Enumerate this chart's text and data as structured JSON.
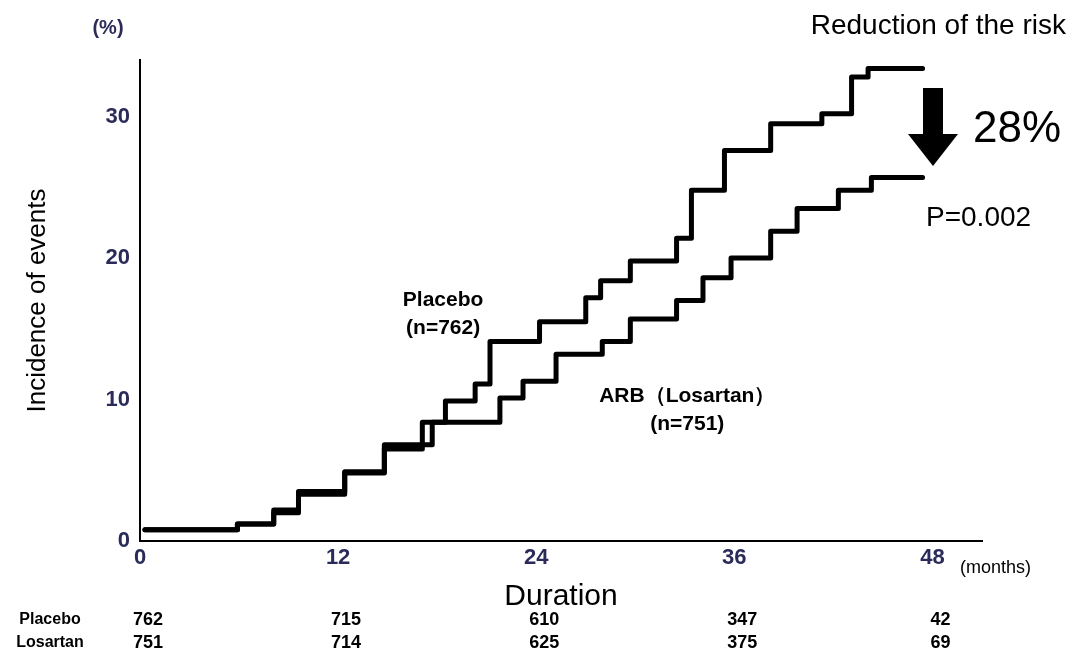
{
  "chart_data": {
    "type": "step",
    "xlabel": "Duration",
    "ylabel": "Incidence of events",
    "xlim": [
      0,
      51
    ],
    "xticks": [
      0,
      12,
      24,
      36,
      48
    ],
    "ylim": [
      0,
      34
    ],
    "yticks": [
      0,
      10,
      20,
      30
    ],
    "grid": false,
    "legend": false,
    "line_style": "solid",
    "marker": "none",
    "annotations": [
      "(%)",
      "(months)",
      "Reduction of the risk",
      "28%",
      "P=0.002",
      "Placebo",
      "762",
      "715",
      "610",
      "347",
      "42",
      "Losartan",
      "751",
      "714",
      "625",
      "375",
      "69"
    ],
    "series": [
      {
        "name": "Placebo (n=762)",
        "color": "#000000",
        "x": [
          0.3,
          5.9,
          8.1,
          9.6,
          12.4,
          14.8,
          17.1,
          18.5,
          20.3,
          21.2,
          24.2,
          27,
          27.9,
          29.7,
          32.5,
          33.4,
          35.4,
          38.2,
          41.3,
          43.1,
          44.1,
          45,
          47.4
        ],
        "values": [
          0.8,
          0.8,
          1.2,
          2.2,
          3.5,
          4.9,
          6.5,
          8.4,
          9.9,
          11.1,
          14.1,
          15.5,
          17.2,
          18.4,
          19.8,
          21.4,
          24.8,
          27.6,
          29.5,
          30.2,
          32.8,
          33.4,
          33.4
        ]
      },
      {
        "name": "ARB（Losartan） (n=751)",
        "color": "#000000",
        "x": [
          0.3,
          5.9,
          8.1,
          9.6,
          12.4,
          14.8,
          17.7,
          21.8,
          23.2,
          25.2,
          28,
          29.7,
          32.5,
          34.1,
          35.8,
          38.2,
          38.8,
          39.8,
          42.3,
          44.3,
          45.3,
          47.4
        ],
        "values": [
          0.8,
          0.8,
          1.2,
          2.0,
          3.3,
          4.8,
          6.8,
          8.4,
          10.1,
          11.3,
          13.2,
          14.1,
          15.7,
          17.0,
          18.6,
          20.0,
          21.9,
          21.9,
          23.5,
          24.8,
          25.7,
          25.7
        ]
      }
    ]
  }
}
